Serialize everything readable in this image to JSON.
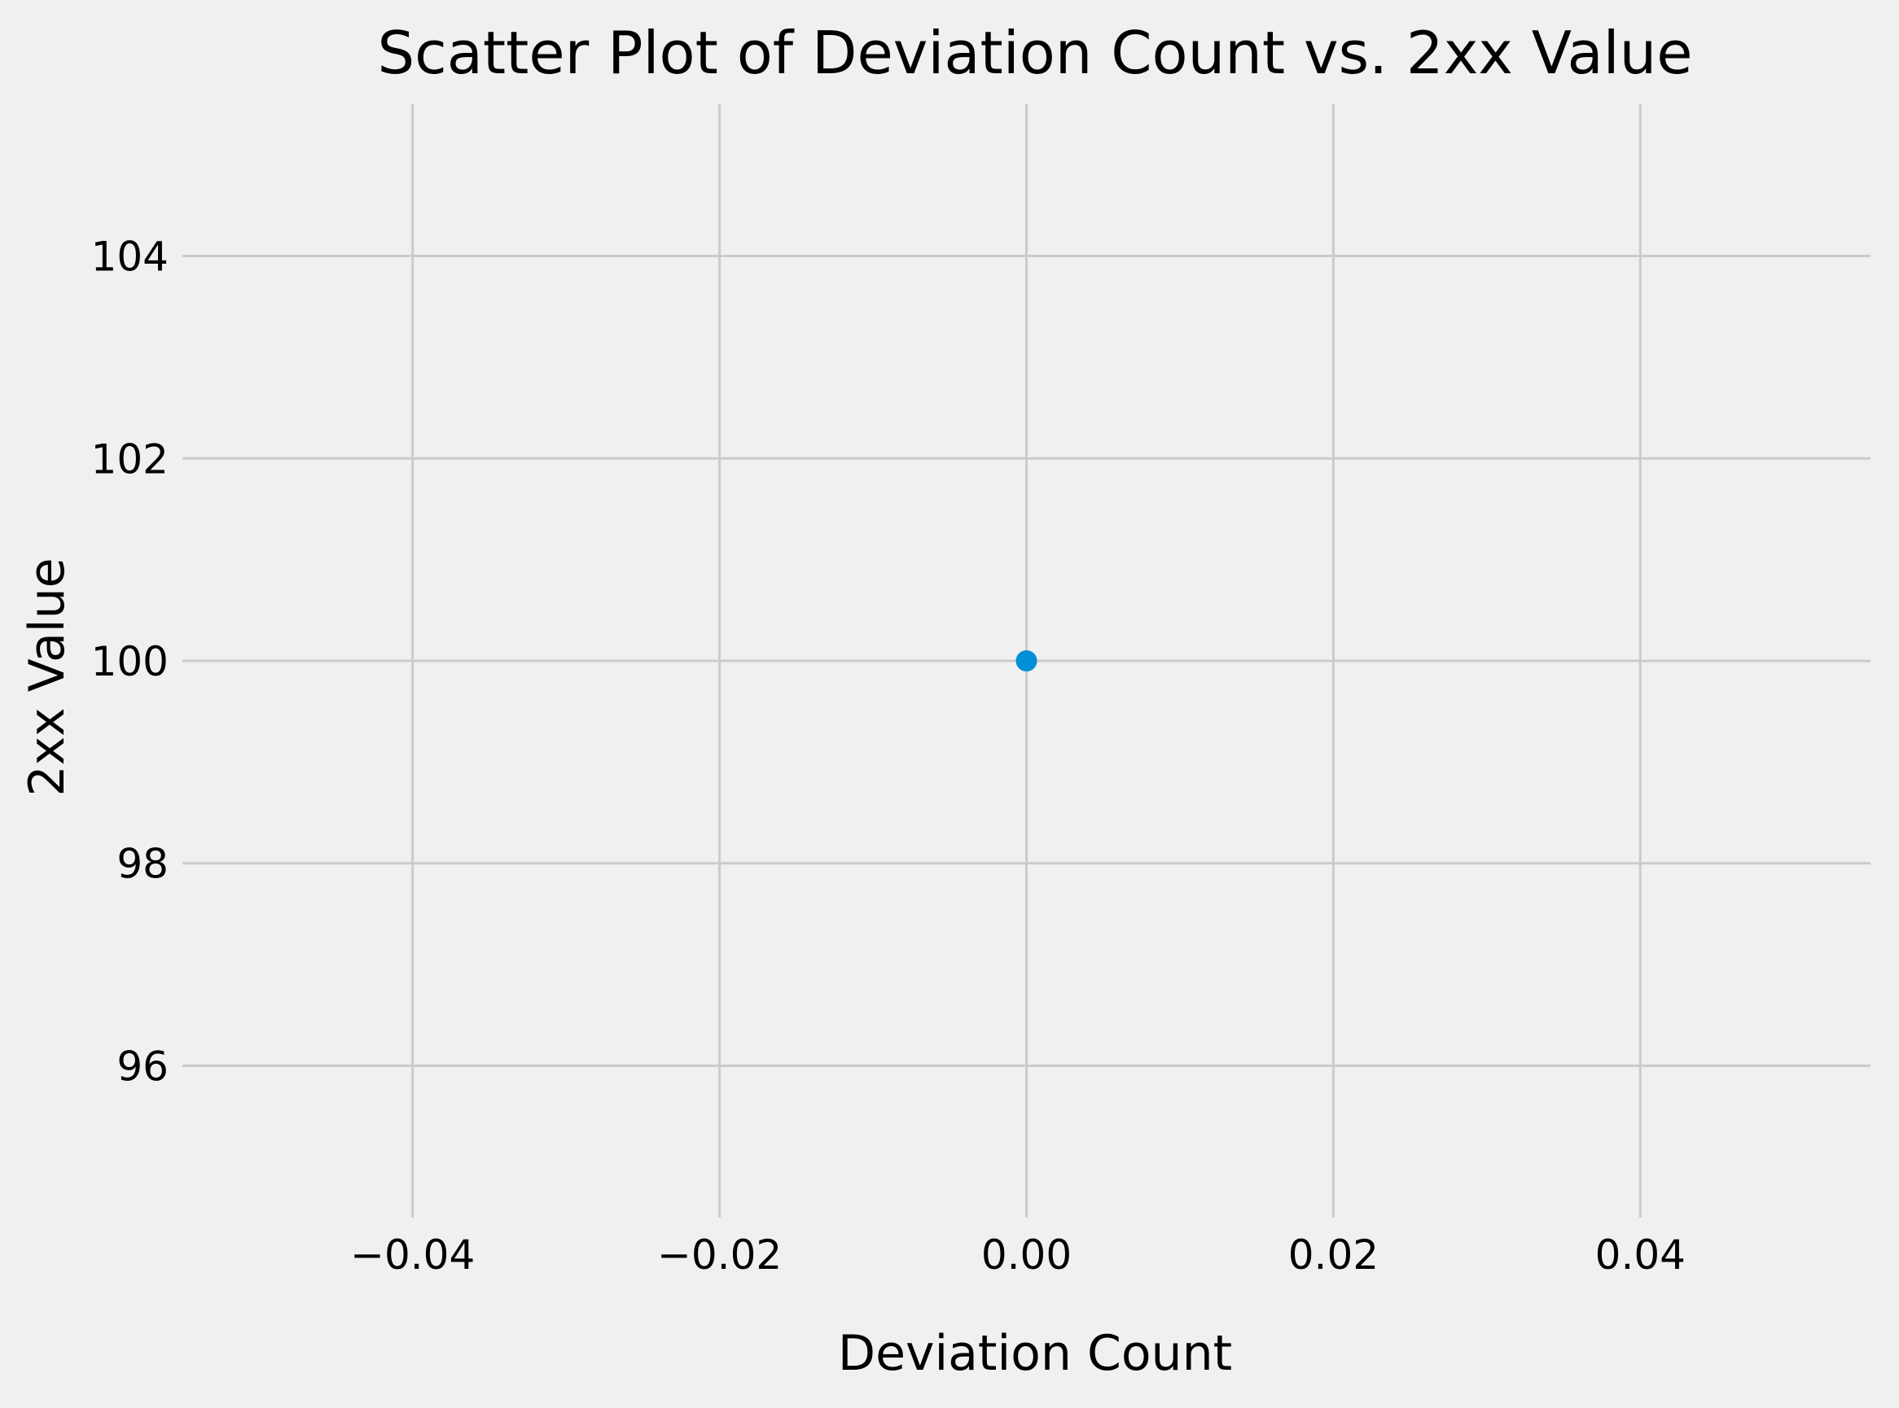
{
  "chart_data": {
    "type": "scatter",
    "title": "Scatter Plot of Deviation Count vs. 2xx Value",
    "xlabel": "Deviation Count",
    "ylabel": "2xx Value",
    "x": [
      0.0
    ],
    "y": [
      100
    ],
    "xlim": [
      -0.055,
      0.055
    ],
    "ylim": [
      94.5,
      105.5
    ],
    "xticks": [
      -0.04,
      -0.02,
      0.0,
      0.02,
      0.04
    ],
    "xtick_labels": [
      "−0.04",
      "−0.02",
      "0.00",
      "0.02",
      "0.04"
    ],
    "yticks": [
      96,
      98,
      100,
      102,
      104
    ],
    "ytick_labels": [
      "96",
      "98",
      "100",
      "102",
      "104"
    ],
    "grid": true,
    "colors": {
      "background": "#f0f0f0",
      "grid": "#cbcbcb",
      "point": "#008fd5"
    }
  }
}
